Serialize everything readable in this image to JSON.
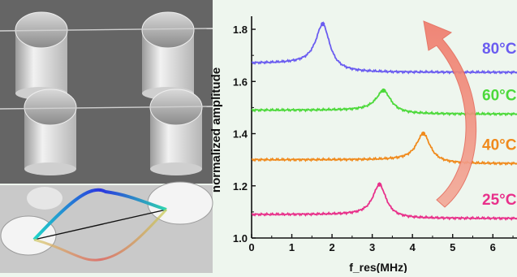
{
  "chart_data": {
    "type": "line",
    "title": "",
    "xlabel": "f_res(MHz)",
    "ylabel": "normalized amplitude",
    "xlim": [
      0,
      6.6
    ],
    "ylim": [
      1.0,
      1.85
    ],
    "xticks": [
      "0",
      "1",
      "2",
      "3",
      "4",
      "5",
      "6"
    ],
    "yticks": [
      "1.0",
      "1.2",
      "1.4",
      "1.6",
      "1.8"
    ],
    "grid": false,
    "legend": "inline-right",
    "series": [
      {
        "name": "80°C",
        "color": "#6a5cf0",
        "baseline": 1.67,
        "tail": 1.635,
        "peak_x": 1.77,
        "peak_y": 1.82,
        "width": 0.42
      },
      {
        "name": "60°C",
        "color": "#4cd93a",
        "baseline": 1.49,
        "tail": 1.475,
        "peak_x": 3.28,
        "peak_y": 1.565,
        "width": 0.45
      },
      {
        "name": "40°C",
        "color": "#f08a1c",
        "baseline": 1.3,
        "tail": 1.285,
        "peak_x": 4.27,
        "peak_y": 1.4,
        "width": 0.42
      },
      {
        "name": "25°C",
        "color": "#e8308a",
        "baseline": 1.09,
        "tail": 1.075,
        "peak_x": 3.18,
        "peak_y": 1.205,
        "width": 0.4
      }
    ],
    "annotations": [
      {
        "type": "curved-arrow",
        "color": "#e85a5a",
        "direction": "up"
      }
    ]
  },
  "panels": {
    "top_image": "sem-micropillars-with-nanowire-icon",
    "bottom_image": "nanowire-vibration-mode-icon"
  }
}
